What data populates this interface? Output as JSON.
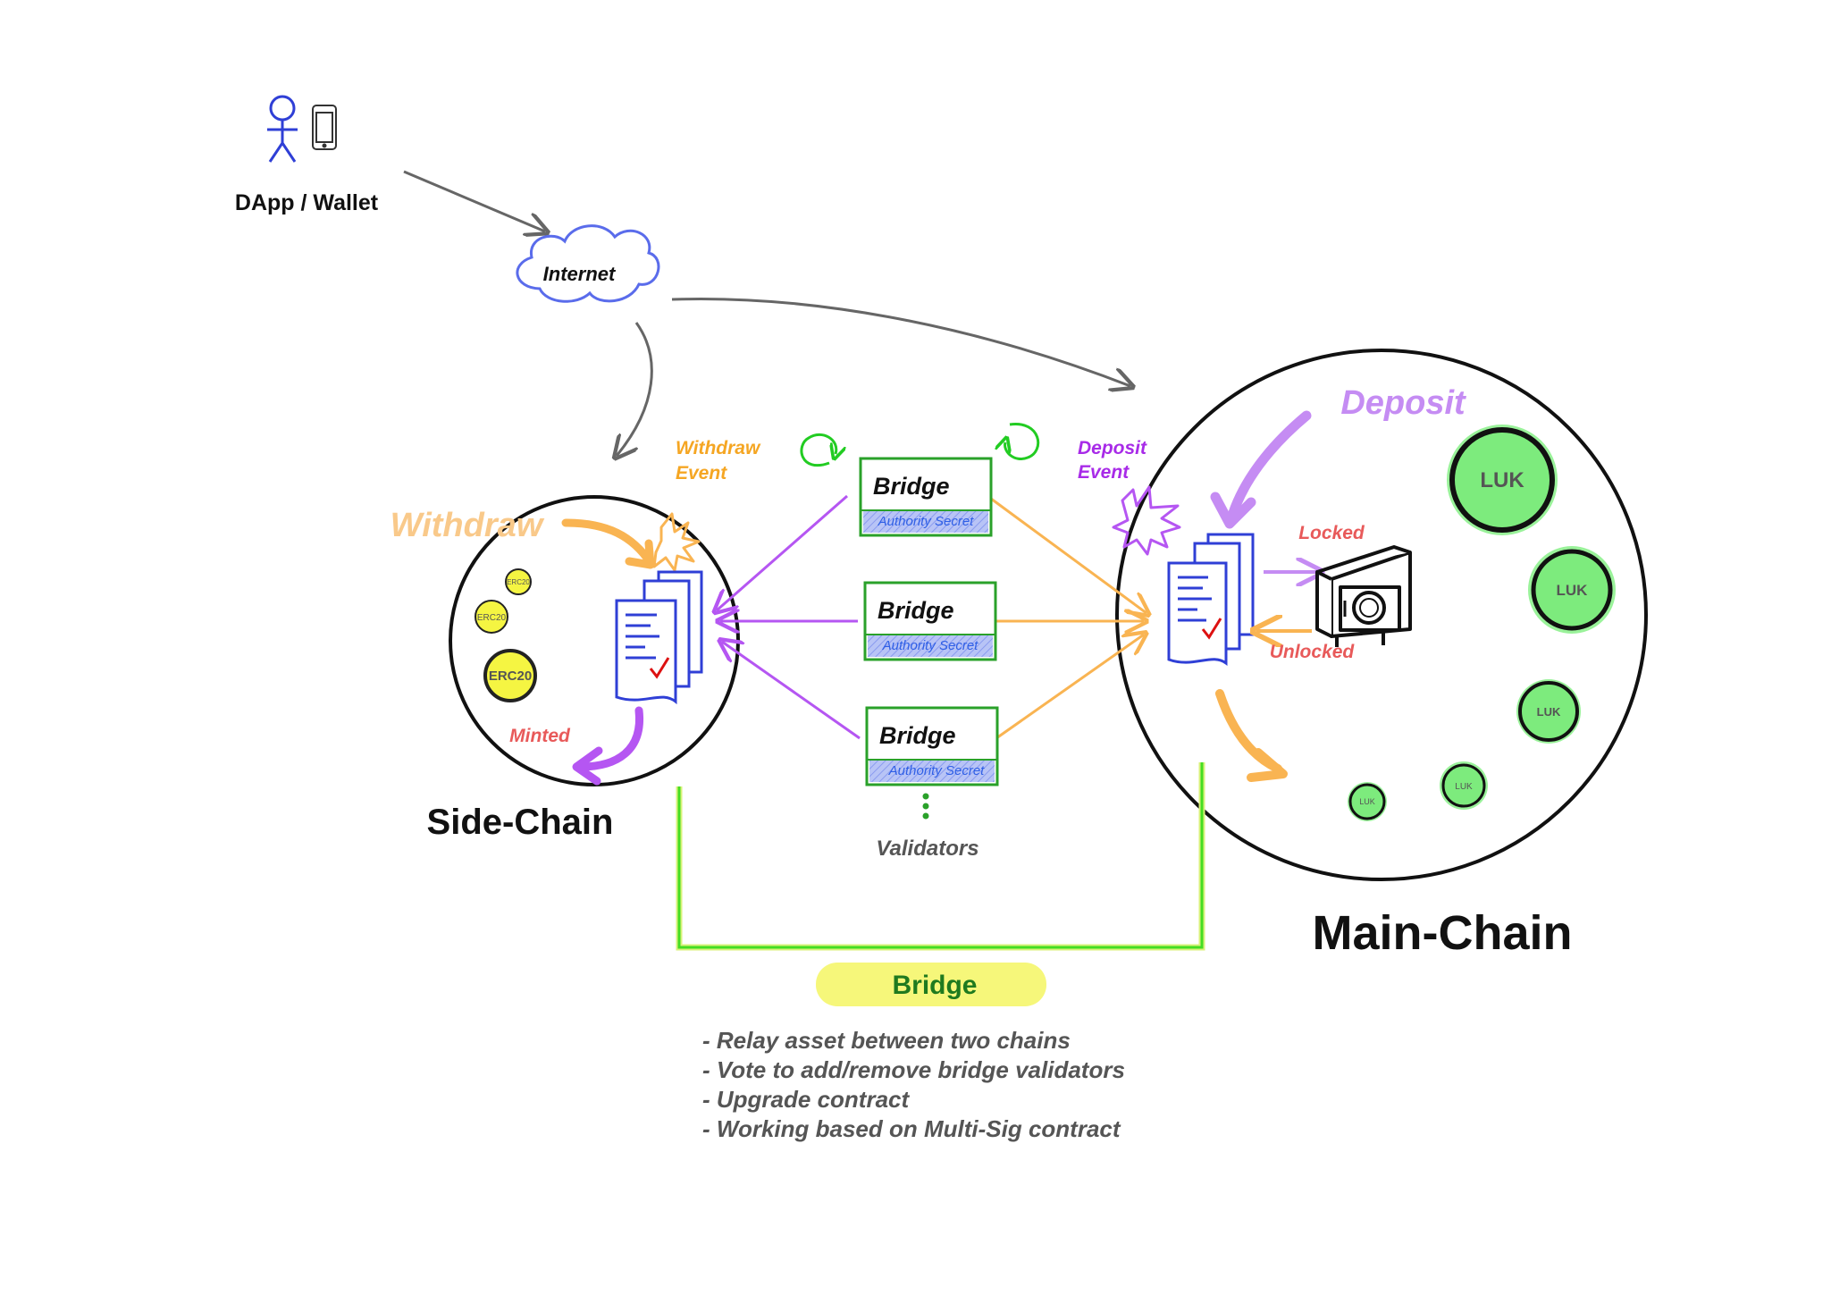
{
  "client": {
    "label": "DApp / Wallet",
    "person_icon": "person-icon",
    "phone_icon": "phone-icon"
  },
  "internet": {
    "label": "Internet",
    "icon": "cloud-icon"
  },
  "side_chain": {
    "title": "Side-Chain",
    "action": "Withdraw",
    "event": {
      "line1": "Withdraw",
      "line2": "Event"
    },
    "result": "Minted",
    "tokens": [
      "ERC20",
      "ERC20",
      "ERC20"
    ]
  },
  "main_chain": {
    "title": "Main-Chain",
    "action": "Deposit",
    "event": {
      "line1": "Deposit",
      "line2": "Event"
    },
    "locked": "Locked",
    "unlocked": "Unlocked",
    "tokens": [
      "LUK",
      "LUK",
      "LUK",
      "LUK",
      "LUK"
    ]
  },
  "validators": {
    "label": "Validators",
    "nodes": [
      {
        "title": "Bridge",
        "secret": "Authority Secret"
      },
      {
        "title": "Bridge",
        "secret": "Authority Secret"
      },
      {
        "title": "Bridge",
        "secret": "Authority Secret"
      }
    ]
  },
  "bridge": {
    "label": "Bridge",
    "notes": [
      "- Relay asset between two chains",
      "- Vote to add/remove bridge validators",
      "- Upgrade contract",
      "- Working based on Multi-Sig contract"
    ]
  },
  "colors": {
    "orange": "#F9B452",
    "purple": "#B556F2",
    "light_purple": "#C58CF3",
    "green": "#2AA12A",
    "bright_green": "#22DD22",
    "blue": "#2F3FD6",
    "red": "#E85A5A",
    "coin_green": "#7DEB7D",
    "coin_yellow": "#F5F542",
    "grey_text": "#555555"
  }
}
